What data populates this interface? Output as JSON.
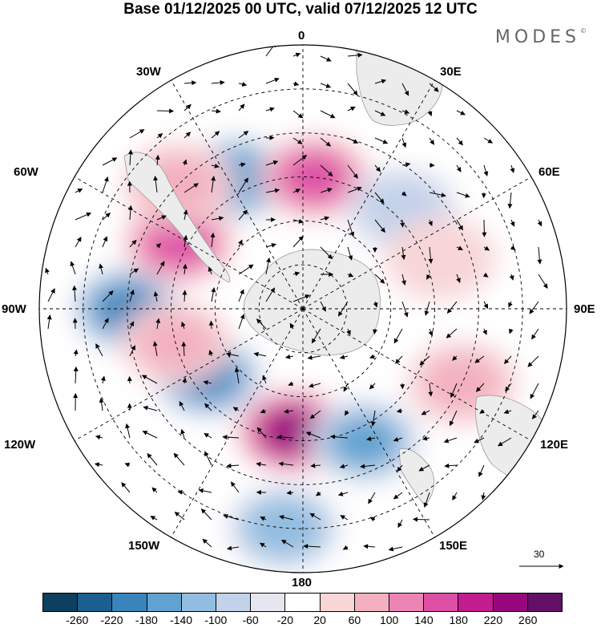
{
  "title": "Base 01/12/2025 00 UTC, valid 07/12/2025 12 UTC",
  "brand": "MODES",
  "brand_mark": "©",
  "longitude_labels": {
    "deg0": "0",
    "e30": "30E",
    "e60": "60E",
    "e90": "90E",
    "e120": "120E",
    "e150": "150E",
    "deg180": "180",
    "w150": "150W",
    "w120": "120W",
    "w90": "90W",
    "w60": "60W",
    "w30": "30W"
  },
  "vector_scale": {
    "value": "30",
    "arrow_icon": "reference-arrow-icon"
  },
  "colorbar": {
    "colors": [
      "#0d3f5f",
      "#1a5f8f",
      "#3a84bc",
      "#62a2d0",
      "#93bde0",
      "#c2d2ea",
      "#e6e6f1",
      "#ffffff",
      "#f8d6d8",
      "#f3b0c0",
      "#ec84b4",
      "#de4fa6",
      "#c21d8e",
      "#98087d",
      "#641067"
    ],
    "ticks": [
      "-260",
      "-220",
      "-180",
      "-140",
      "-100",
      "-60",
      "-20",
      "20",
      "60",
      "100",
      "140",
      "180",
      "220",
      "260"
    ]
  },
  "anomaly_cells": [
    {
      "lat": -30,
      "lon": -90,
      "value": -200
    },
    {
      "lat": -42,
      "lon": -62,
      "value": 170
    },
    {
      "lat": -40,
      "lon": -27,
      "value": -180
    },
    {
      "lat": -45,
      "lon": 5,
      "value": 150
    },
    {
      "lat": -42,
      "lon": 45,
      "value": -100
    },
    {
      "lat": -50,
      "lon": -125,
      "value": -200
    },
    {
      "lat": -48,
      "lon": -175,
      "value": 230
    },
    {
      "lat": -40,
      "lon": 155,
      "value": -170
    },
    {
      "lat": -15,
      "lon": -175,
      "value": -140
    },
    {
      "lat": -30,
      "lon": 115,
      "value": 70
    },
    {
      "lat": -45,
      "lon": -105,
      "value": 80
    },
    {
      "lat": -30,
      "lon": -45,
      "value": 90
    },
    {
      "lat": -40,
      "lon": 70,
      "value": 50
    }
  ]
}
